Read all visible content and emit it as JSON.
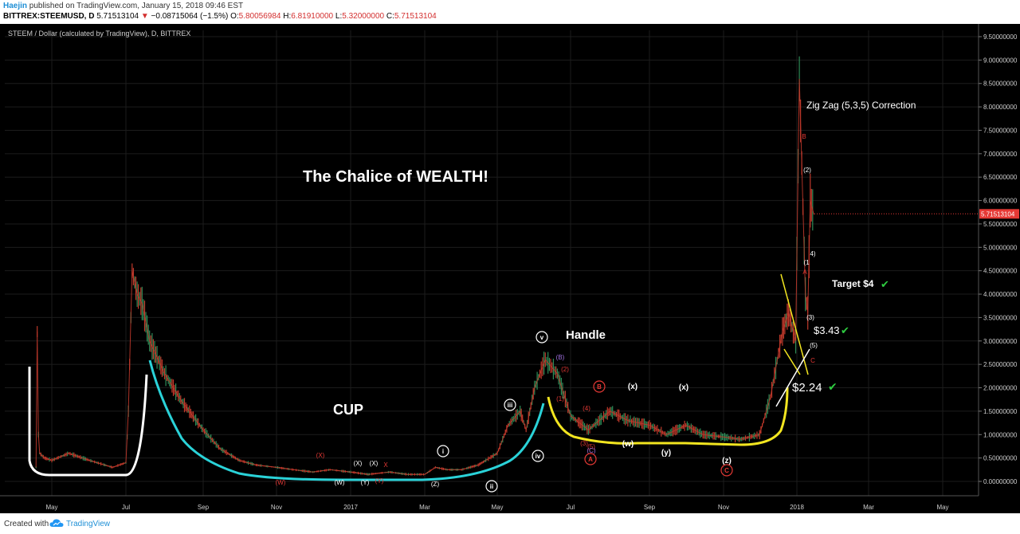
{
  "header": {
    "author": "Haejin",
    "published": " published on TradingView.com, January 15, 2018 09:46 EST",
    "symbol": "BITTREX:STEEMUSD, D",
    "price": " 5.71513104",
    "arrow": "▼",
    "change": "−0.08715064 (−1.5%)",
    "open_label": "O:",
    "open_value": "5.80056984",
    "high_label": "H:",
    "high_value": "6.81910000",
    "low_label": "L:",
    "low_value": "5.32000000",
    "close_label": "C:",
    "close_value": "5.71513104"
  },
  "footer": {
    "created_with": "Created with",
    "brand": "TradingView"
  },
  "colors": {
    "background": "#000000",
    "up_candle": "#2e8b57",
    "down_candle": "#c0392b",
    "cup_curve": "#2ad2d8",
    "handle_curve": "#f2e520",
    "base_curve": "#ffffff",
    "price_tag": "#e53935",
    "check": "#2ecc40"
  },
  "chart_data": {
    "type": "line",
    "chart_title": "STEEM / Dollar (calculated by TradingView), D, BITTREX",
    "last_price_tag": "5.71513104",
    "x_ticks": [
      "May",
      "Jul",
      "Sep",
      "Nov",
      "2017",
      "Mar",
      "May",
      "Jul",
      "Sep",
      "Nov",
      "2018",
      "Mar",
      "May"
    ],
    "y_ticks": [
      "9.50000000",
      "9.00000000",
      "8.50000000",
      "8.00000000",
      "7.50000000",
      "7.00000000",
      "6.50000000",
      "6.00000000",
      "5.50000000",
      "5.00000000",
      "4.50000000",
      "4.00000000",
      "3.50000000",
      "3.00000000",
      "2.50000000",
      "2.00000000",
      "1.50000000",
      "1.00000000",
      "0.50000000",
      "0.00000000"
    ],
    "ylim": [
      -0.15,
      9.65
    ],
    "series": [
      {
        "x": [
          "2016-04-18",
          "2016-04-19",
          "2016-04-20",
          "2016-04-21",
          "2016-04-25",
          "2016-05-01",
          "2016-05-15",
          "2016-06-01",
          "2016-06-20",
          "2016-07-01",
          "2016-07-03",
          "2016-07-06",
          "2016-07-10",
          "2016-07-14",
          "2016-07-20",
          "2016-08-01",
          "2016-08-15",
          "2016-09-01",
          "2016-09-15",
          "2016-10-01",
          "2016-10-15",
          "2016-11-01",
          "2016-11-15",
          "2016-12-01",
          "2016-12-15",
          "2017-01-01",
          "2017-01-15",
          "2017-02-01",
          "2017-02-15",
          "2017-03-01",
          "2017-03-10",
          "2017-03-20",
          "2017-04-01",
          "2017-04-15",
          "2017-05-01",
          "2017-05-10",
          "2017-05-20",
          "2017-05-25",
          "2017-06-01",
          "2017-06-10",
          "2017-06-20",
          "2017-07-01",
          "2017-07-15",
          "2017-08-01",
          "2017-08-15",
          "2017-09-01",
          "2017-09-15",
          "2017-10-01",
          "2017-10-15",
          "2017-11-01",
          "2017-11-15",
          "2017-12-01",
          "2017-12-10",
          "2017-12-20",
          "2017-12-25",
          "2017-12-31",
          "2018-01-03",
          "2018-01-05",
          "2018-01-08",
          "2018-01-10",
          "2018-01-12",
          "2018-01-15"
        ],
        "values": [
          0.3,
          3.2,
          1.0,
          0.6,
          0.5,
          0.45,
          0.6,
          0.45,
          0.3,
          0.4,
          1.5,
          4.5,
          4.0,
          3.8,
          3.0,
          2.3,
          1.7,
          1.1,
          0.7,
          0.45,
          0.35,
          0.3,
          0.25,
          0.2,
          0.25,
          0.2,
          0.15,
          0.2,
          0.15,
          0.15,
          0.3,
          0.25,
          0.25,
          0.35,
          0.6,
          1.2,
          1.5,
          1.1,
          2.0,
          2.6,
          2.3,
          1.4,
          1.1,
          1.5,
          1.3,
          1.2,
          1.0,
          1.2,
          1.0,
          0.95,
          0.9,
          1.0,
          1.8,
          3.2,
          3.6,
          3.0,
          8.6,
          6.8,
          4.0,
          3.6,
          6.0,
          5.7
        ]
      }
    ],
    "annotations": {
      "title_text": "The Chalice of WEALTH!",
      "cup": "CUP",
      "handle": "Handle",
      "correction": "Zig Zag (5,3,5) Correction",
      "target4": "Target $4",
      "p343": "$3.43",
      "p224": "$2.24",
      "check": "✔",
      "w_W": "(W)",
      "w_X": "(X)",
      "w_Y": "(Y)",
      "w_Z": "(Z)",
      "w_x": "X",
      "w_XX1": "(X)",
      "w_XX2": "(X)",
      "c_i": "i",
      "c_ii": "ii",
      "c_iii": "iii",
      "c_iv": "iv",
      "c_v": "v",
      "w_B_p": "(B)",
      "w_2": "(2)",
      "w_1": "(1)",
      "w_4": "(4)",
      "w_3": "(3)",
      "w_5": "(5)",
      "w_C_p": "(C)",
      "c_B": "B",
      "c_A": "A",
      "c_C": "C",
      "w_xl1": "(x)",
      "w_xl2": "(x)",
      "w_wl": "(w)",
      "w_yl": "(y)",
      "w_zl": "(z)",
      "z_B": "B",
      "z_2": "(2)",
      "z_1": "(1",
      "z_4": "4)",
      "z_A": "A",
      "z_3": "(3)",
      "z_5": "(5)",
      "z_C": "C"
    }
  }
}
